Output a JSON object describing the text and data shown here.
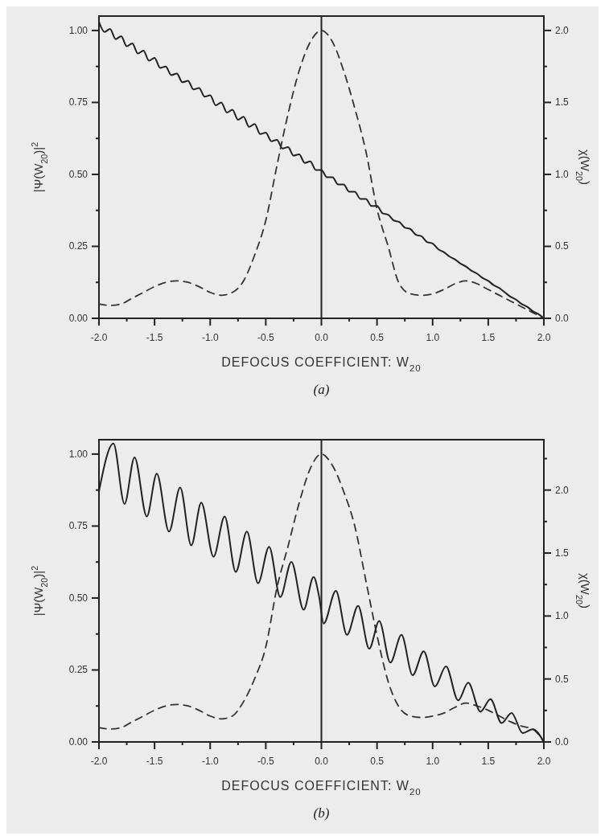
{
  "chart_data": [
    {
      "type": "line",
      "xlabel": "DEFOCUS COEFFICIENT: W$_{20}$",
      "ylabel": "|Ψ(W$_{20}$)|$^{2}$",
      "y2label": "χ(W$_{20}$)",
      "annotations": [
        "(a)"
      ],
      "xlim": [
        -2,
        2
      ],
      "xticks": [
        {
          "value": -2,
          "label": "-2.0"
        },
        {
          "value": -1.75,
          "label": null
        },
        {
          "value": -1.5,
          "label": "-1.5"
        },
        {
          "value": -1.25,
          "label": null
        },
        {
          "value": -1,
          "label": "-1.0"
        },
        {
          "value": -0.75,
          "label": null
        },
        {
          "value": -0.5,
          "label": "-0.5"
        },
        {
          "value": -0.25,
          "label": null
        },
        {
          "value": 0,
          "label": "0.0"
        },
        {
          "value": 0.25,
          "label": null
        },
        {
          "value": 0.5,
          "label": "0.5"
        },
        {
          "value": 0.75,
          "label": null
        },
        {
          "value": 1,
          "label": "1.0"
        },
        {
          "value": 1.25,
          "label": null
        },
        {
          "value": 1.5,
          "label": "1.5"
        },
        {
          "value": 1.75,
          "label": null
        },
        {
          "value": 2,
          "label": "2.0"
        }
      ],
      "ylim": [
        0,
        1.05
      ],
      "yticks": [
        {
          "value": 0,
          "label": "0.00"
        },
        {
          "value": 0.125,
          "label": null
        },
        {
          "value": 0.25,
          "label": "0.25"
        },
        {
          "value": 0.375,
          "label": null
        },
        {
          "value": 0.5,
          "label": "0.50"
        },
        {
          "value": 0.625,
          "label": null
        },
        {
          "value": 0.75,
          "label": "0.75"
        },
        {
          "value": 0.875,
          "label": null
        },
        {
          "value": 1,
          "label": "1.00"
        }
      ],
      "y2lim": [
        0,
        2.1
      ],
      "y2ticks": [
        {
          "value": 0,
          "label": "0.0"
        },
        {
          "value": 0.25,
          "label": null
        },
        {
          "value": 0.5,
          "label": "0.5"
        },
        {
          "value": 0.75,
          "label": null
        },
        {
          "value": 1,
          "label": "1.0"
        },
        {
          "value": 1.25,
          "label": null
        },
        {
          "value": 1.5,
          "label": "1.5"
        },
        {
          "value": 1.75,
          "label": null
        },
        {
          "value": 2,
          "label": "2.0"
        }
      ],
      "ref_lines": [
        {
          "axis": "x",
          "value": 0,
          "line_style": "solid"
        }
      ],
      "series": [
        {
          "color": "#333333",
          "line_style": "dashed",
          "x": [
            -2,
            -1.9,
            -1.8,
            -1.7,
            -1.6,
            -1.5,
            -1.4,
            -1.3,
            -1.2,
            -1.1,
            -1,
            -0.9,
            -0.8,
            -0.7,
            -0.6,
            -0.5,
            -0.4,
            -0.3,
            -0.2,
            -0.1,
            0,
            0.1,
            0.2,
            0.3,
            0.4,
            0.5,
            0.6,
            0.7,
            0.8,
            0.9,
            1,
            1.1,
            1.2,
            1.3,
            1.4,
            1.5,
            1.6,
            1.7,
            1.8,
            1.9,
            2
          ],
          "values": [
            0.05,
            0.045,
            0.05,
            0.07,
            0.09,
            0.11,
            0.125,
            0.13,
            0.125,
            0.11,
            0.09,
            0.08,
            0.09,
            0.13,
            0.22,
            0.34,
            0.53,
            0.71,
            0.86,
            0.96,
            1.0,
            0.96,
            0.86,
            0.73,
            0.58,
            0.38,
            0.25,
            0.12,
            0.085,
            0.08,
            0.085,
            0.1,
            0.12,
            0.13,
            0.12,
            0.1,
            0.08,
            0.06,
            0.04,
            0.02,
            0.0
          ]
        },
        {
          "color": "#222222",
          "line_style": "solid",
          "axis": "y2",
          "x": [
            -2,
            -1.95,
            -1.9,
            -1.85,
            -1.8,
            -1.75,
            -1.7,
            -1.65,
            -1.6,
            -1.55,
            -1.5,
            -1.45,
            -1.4,
            -1.35,
            -1.3,
            -1.25,
            -1.2,
            -1.15,
            -1.1,
            -1.05,
            -1,
            -0.95,
            -0.9,
            -0.85,
            -0.8,
            -0.75,
            -0.7,
            -0.65,
            -0.6,
            -0.55,
            -0.5,
            -0.45,
            -0.4,
            -0.35,
            -0.3,
            -0.25,
            -0.2,
            -0.15,
            -0.1,
            -0.05,
            0,
            0.05,
            0.1,
            0.15,
            0.2,
            0.25,
            0.3,
            0.35,
            0.4,
            0.45,
            0.5,
            0.55,
            0.6,
            0.65,
            0.7,
            0.75,
            0.8,
            0.85,
            0.9,
            0.95,
            1,
            1.05,
            1.1,
            1.15,
            1.2,
            1.25,
            1.3,
            1.35,
            1.4,
            1.45,
            1.5,
            1.55,
            1.6,
            1.65,
            1.7,
            1.75,
            1.8,
            1.85,
            1.9,
            1.95,
            2
          ],
          "values": [
            2.06,
            1.99,
            2.01,
            1.94,
            1.96,
            1.89,
            1.91,
            1.84,
            1.86,
            1.79,
            1.81,
            1.74,
            1.75,
            1.69,
            1.7,
            1.64,
            1.65,
            1.59,
            1.6,
            1.54,
            1.55,
            1.48,
            1.5,
            1.43,
            1.45,
            1.38,
            1.4,
            1.33,
            1.35,
            1.28,
            1.29,
            1.23,
            1.24,
            1.18,
            1.19,
            1.13,
            1.14,
            1.08,
            1.09,
            1.03,
            1.03,
            0.98,
            0.98,
            0.93,
            0.93,
            0.88,
            0.88,
            0.83,
            0.83,
            0.78,
            0.78,
            0.73,
            0.72,
            0.68,
            0.67,
            0.63,
            0.62,
            0.58,
            0.57,
            0.53,
            0.52,
            0.48,
            0.46,
            0.43,
            0.41,
            0.38,
            0.36,
            0.33,
            0.31,
            0.28,
            0.26,
            0.23,
            0.21,
            0.18,
            0.15,
            0.13,
            0.1,
            0.08,
            0.05,
            0.03,
            0.0
          ]
        }
      ]
    },
    {
      "type": "line",
      "xlabel": "DEFOCUS COEFFICIENT: W$_{20}$",
      "ylabel": "|Ψ(W$_{20}$)|$^{2}$",
      "y2label": "χ(W$_{20}$)",
      "annotations": [
        "(b)"
      ],
      "xlim": [
        -2,
        2
      ],
      "xticks": [
        {
          "value": -2,
          "label": "-2.0"
        },
        {
          "value": -1.75,
          "label": null
        },
        {
          "value": -1.5,
          "label": "-1.5"
        },
        {
          "value": -1.25,
          "label": null
        },
        {
          "value": -1,
          "label": "-1.0"
        },
        {
          "value": -0.75,
          "label": null
        },
        {
          "value": -0.5,
          "label": "-0.5"
        },
        {
          "value": -0.25,
          "label": null
        },
        {
          "value": 0,
          "label": "0.0"
        },
        {
          "value": 0.25,
          "label": null
        },
        {
          "value": 0.5,
          "label": "0.5"
        },
        {
          "value": 0.75,
          "label": null
        },
        {
          "value": 1,
          "label": "1.0"
        },
        {
          "value": 1.25,
          "label": null
        },
        {
          "value": 1.5,
          "label": "1.5"
        },
        {
          "value": 1.75,
          "label": null
        },
        {
          "value": 2,
          "label": "2.0"
        }
      ],
      "ylim": [
        0,
        1.05
      ],
      "yticks": [
        {
          "value": 0,
          "label": "0.00"
        },
        {
          "value": 0.125,
          "label": null
        },
        {
          "value": 0.25,
          "label": "0.25"
        },
        {
          "value": 0.375,
          "label": null
        },
        {
          "value": 0.5,
          "label": "0.50"
        },
        {
          "value": 0.625,
          "label": null
        },
        {
          "value": 0.75,
          "label": "0.75"
        },
        {
          "value": 0.875,
          "label": null
        },
        {
          "value": 1,
          "label": "1.00"
        }
      ],
      "y2lim": [
        0,
        2.4
      ],
      "y2ticks": [
        {
          "value": 0,
          "label": "0.0"
        },
        {
          "value": 0.25,
          "label": null
        },
        {
          "value": 0.5,
          "label": "0.5"
        },
        {
          "value": 0.75,
          "label": null
        },
        {
          "value": 1,
          "label": "1.0"
        },
        {
          "value": 1.25,
          "label": null
        },
        {
          "value": 1.5,
          "label": "1.5"
        },
        {
          "value": 1.75,
          "label": null
        },
        {
          "value": 2,
          "label": "2.0"
        },
        {
          "value": 2.25,
          "label": null
        }
      ],
      "ref_lines": [
        {
          "axis": "x",
          "value": 0,
          "line_style": "solid"
        }
      ],
      "series": [
        {
          "color": "#333333",
          "line_style": "dashed",
          "x": [
            -2,
            -1.9,
            -1.8,
            -1.7,
            -1.6,
            -1.5,
            -1.4,
            -1.3,
            -1.2,
            -1.1,
            -1,
            -0.9,
            -0.8,
            -0.7,
            -0.6,
            -0.5,
            -0.4,
            -0.3,
            -0.2,
            -0.1,
            0,
            0.1,
            0.2,
            0.3,
            0.4,
            0.5,
            0.6,
            0.7,
            0.8,
            0.9,
            1,
            1.1,
            1.2,
            1.3,
            1.4,
            1.5,
            1.6,
            1.7,
            1.8,
            1.9,
            2
          ],
          "values": [
            0.05,
            0.045,
            0.05,
            0.07,
            0.09,
            0.11,
            0.125,
            0.13,
            0.125,
            0.11,
            0.09,
            0.08,
            0.09,
            0.14,
            0.22,
            0.33,
            0.535,
            0.68,
            0.83,
            0.95,
            1.0,
            0.96,
            0.87,
            0.75,
            0.56,
            0.37,
            0.21,
            0.12,
            0.09,
            0.085,
            0.09,
            0.1,
            0.12,
            0.135,
            0.125,
            0.11,
            0.09,
            0.07,
            0.055,
            0.045,
            0.0
          ]
        },
        {
          "color": "#222222",
          "line_style": "solid",
          "axis": "y2",
          "x": [
            -2,
            -1.87,
            -1.77,
            -1.68,
            -1.57,
            -1.48,
            -1.37,
            -1.27,
            -1.17,
            -1.08,
            -0.97,
            -0.87,
            -0.77,
            -0.67,
            -0.57,
            -0.47,
            -0.37,
            -0.27,
            -0.16,
            -0.07,
            -0.02,
            0.02,
            0.13,
            0.23,
            0.33,
            0.43,
            0.52,
            0.62,
            0.72,
            0.82,
            0.92,
            1.02,
            1.12,
            1.23,
            1.32,
            1.43,
            1.52,
            1.62,
            1.71,
            1.81,
            1.9,
            2
          ],
          "values": [
            1.99,
            2.37,
            1.89,
            2.26,
            1.79,
            2.13,
            1.67,
            2.02,
            1.56,
            1.9,
            1.47,
            1.79,
            1.35,
            1.67,
            1.26,
            1.55,
            1.15,
            1.43,
            1.05,
            1.31,
            1.15,
            0.94,
            1.2,
            0.85,
            1.08,
            0.74,
            0.96,
            0.63,
            0.85,
            0.53,
            0.72,
            0.44,
            0.6,
            0.33,
            0.47,
            0.24,
            0.34,
            0.15,
            0.23,
            0.07,
            0.1,
            0.0
          ]
        }
      ]
    }
  ]
}
